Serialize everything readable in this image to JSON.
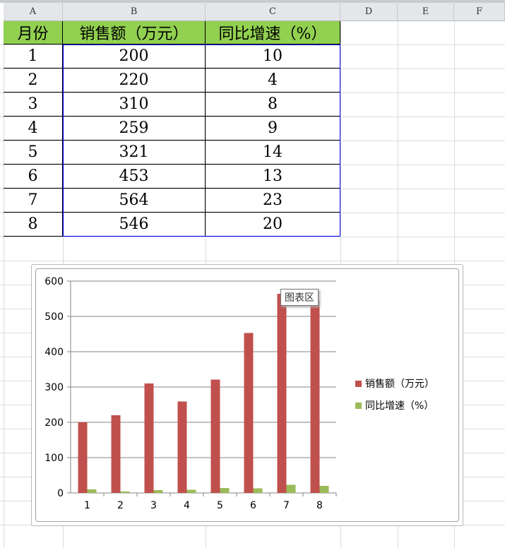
{
  "columns": [
    "A",
    "B",
    "C",
    "D",
    "E",
    "F"
  ],
  "table": {
    "headers": [
      "月份",
      "销售额（万元）",
      "同比增速（%）"
    ],
    "rows": [
      [
        "1",
        "200",
        "10"
      ],
      [
        "2",
        "220",
        "4"
      ],
      [
        "3",
        "310",
        "8"
      ],
      [
        "4",
        "259",
        "9"
      ],
      [
        "5",
        "321",
        "14"
      ],
      [
        "6",
        "453",
        "13"
      ],
      [
        "7",
        "564",
        "23"
      ],
      [
        "8",
        "546",
        "20"
      ]
    ]
  },
  "tooltip": "图表区",
  "chart_data": {
    "type": "bar",
    "categories": [
      "1",
      "2",
      "3",
      "4",
      "5",
      "6",
      "7",
      "8"
    ],
    "series": [
      {
        "name": "销售额（万元）",
        "values": [
          200,
          220,
          310,
          259,
          321,
          453,
          564,
          546
        ],
        "color": "#c0504d"
      },
      {
        "name": "同比增速（%）",
        "values": [
          10,
          4,
          8,
          9,
          14,
          13,
          23,
          20
        ],
        "color": "#9bbb59"
      }
    ],
    "ylim": [
      0,
      600
    ],
    "yticks": [
      "0",
      "100",
      "200",
      "300",
      "400",
      "500",
      "600"
    ],
    "grid": true,
    "legend": "right"
  }
}
